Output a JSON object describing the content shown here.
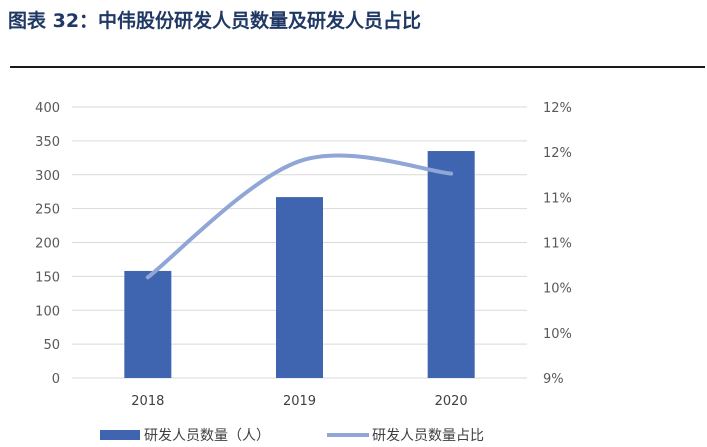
{
  "figure_title": "图表 32：中伟股份研发人员数量及研发人员占比",
  "chart_data": {
    "type": "bar",
    "categories": [
      "2018",
      "2019",
      "2020"
    ],
    "series": [
      {
        "name": "研发人员数量（人）",
        "type": "bar",
        "axis": "left",
        "values": [
          158,
          267,
          335
        ],
        "color": "#3f65b0"
      },
      {
        "name": "研发人员数量占比",
        "type": "line",
        "axis": "right",
        "values": [
          10.3,
          11.8,
          11.64
        ],
        "color": "#8fa6d6"
      }
    ],
    "y_left": {
      "min": 0,
      "max": 400,
      "ticks": [
        "0",
        "50",
        "100",
        "150",
        "200",
        "250",
        "300",
        "350",
        "400"
      ]
    },
    "y_right": {
      "min": 9,
      "max": 12.5,
      "ticks": [
        "9%",
        "10%",
        "10%",
        "11%",
        "11%",
        "12%",
        "12%"
      ]
    },
    "grid": true,
    "legend_position": "bottom"
  }
}
